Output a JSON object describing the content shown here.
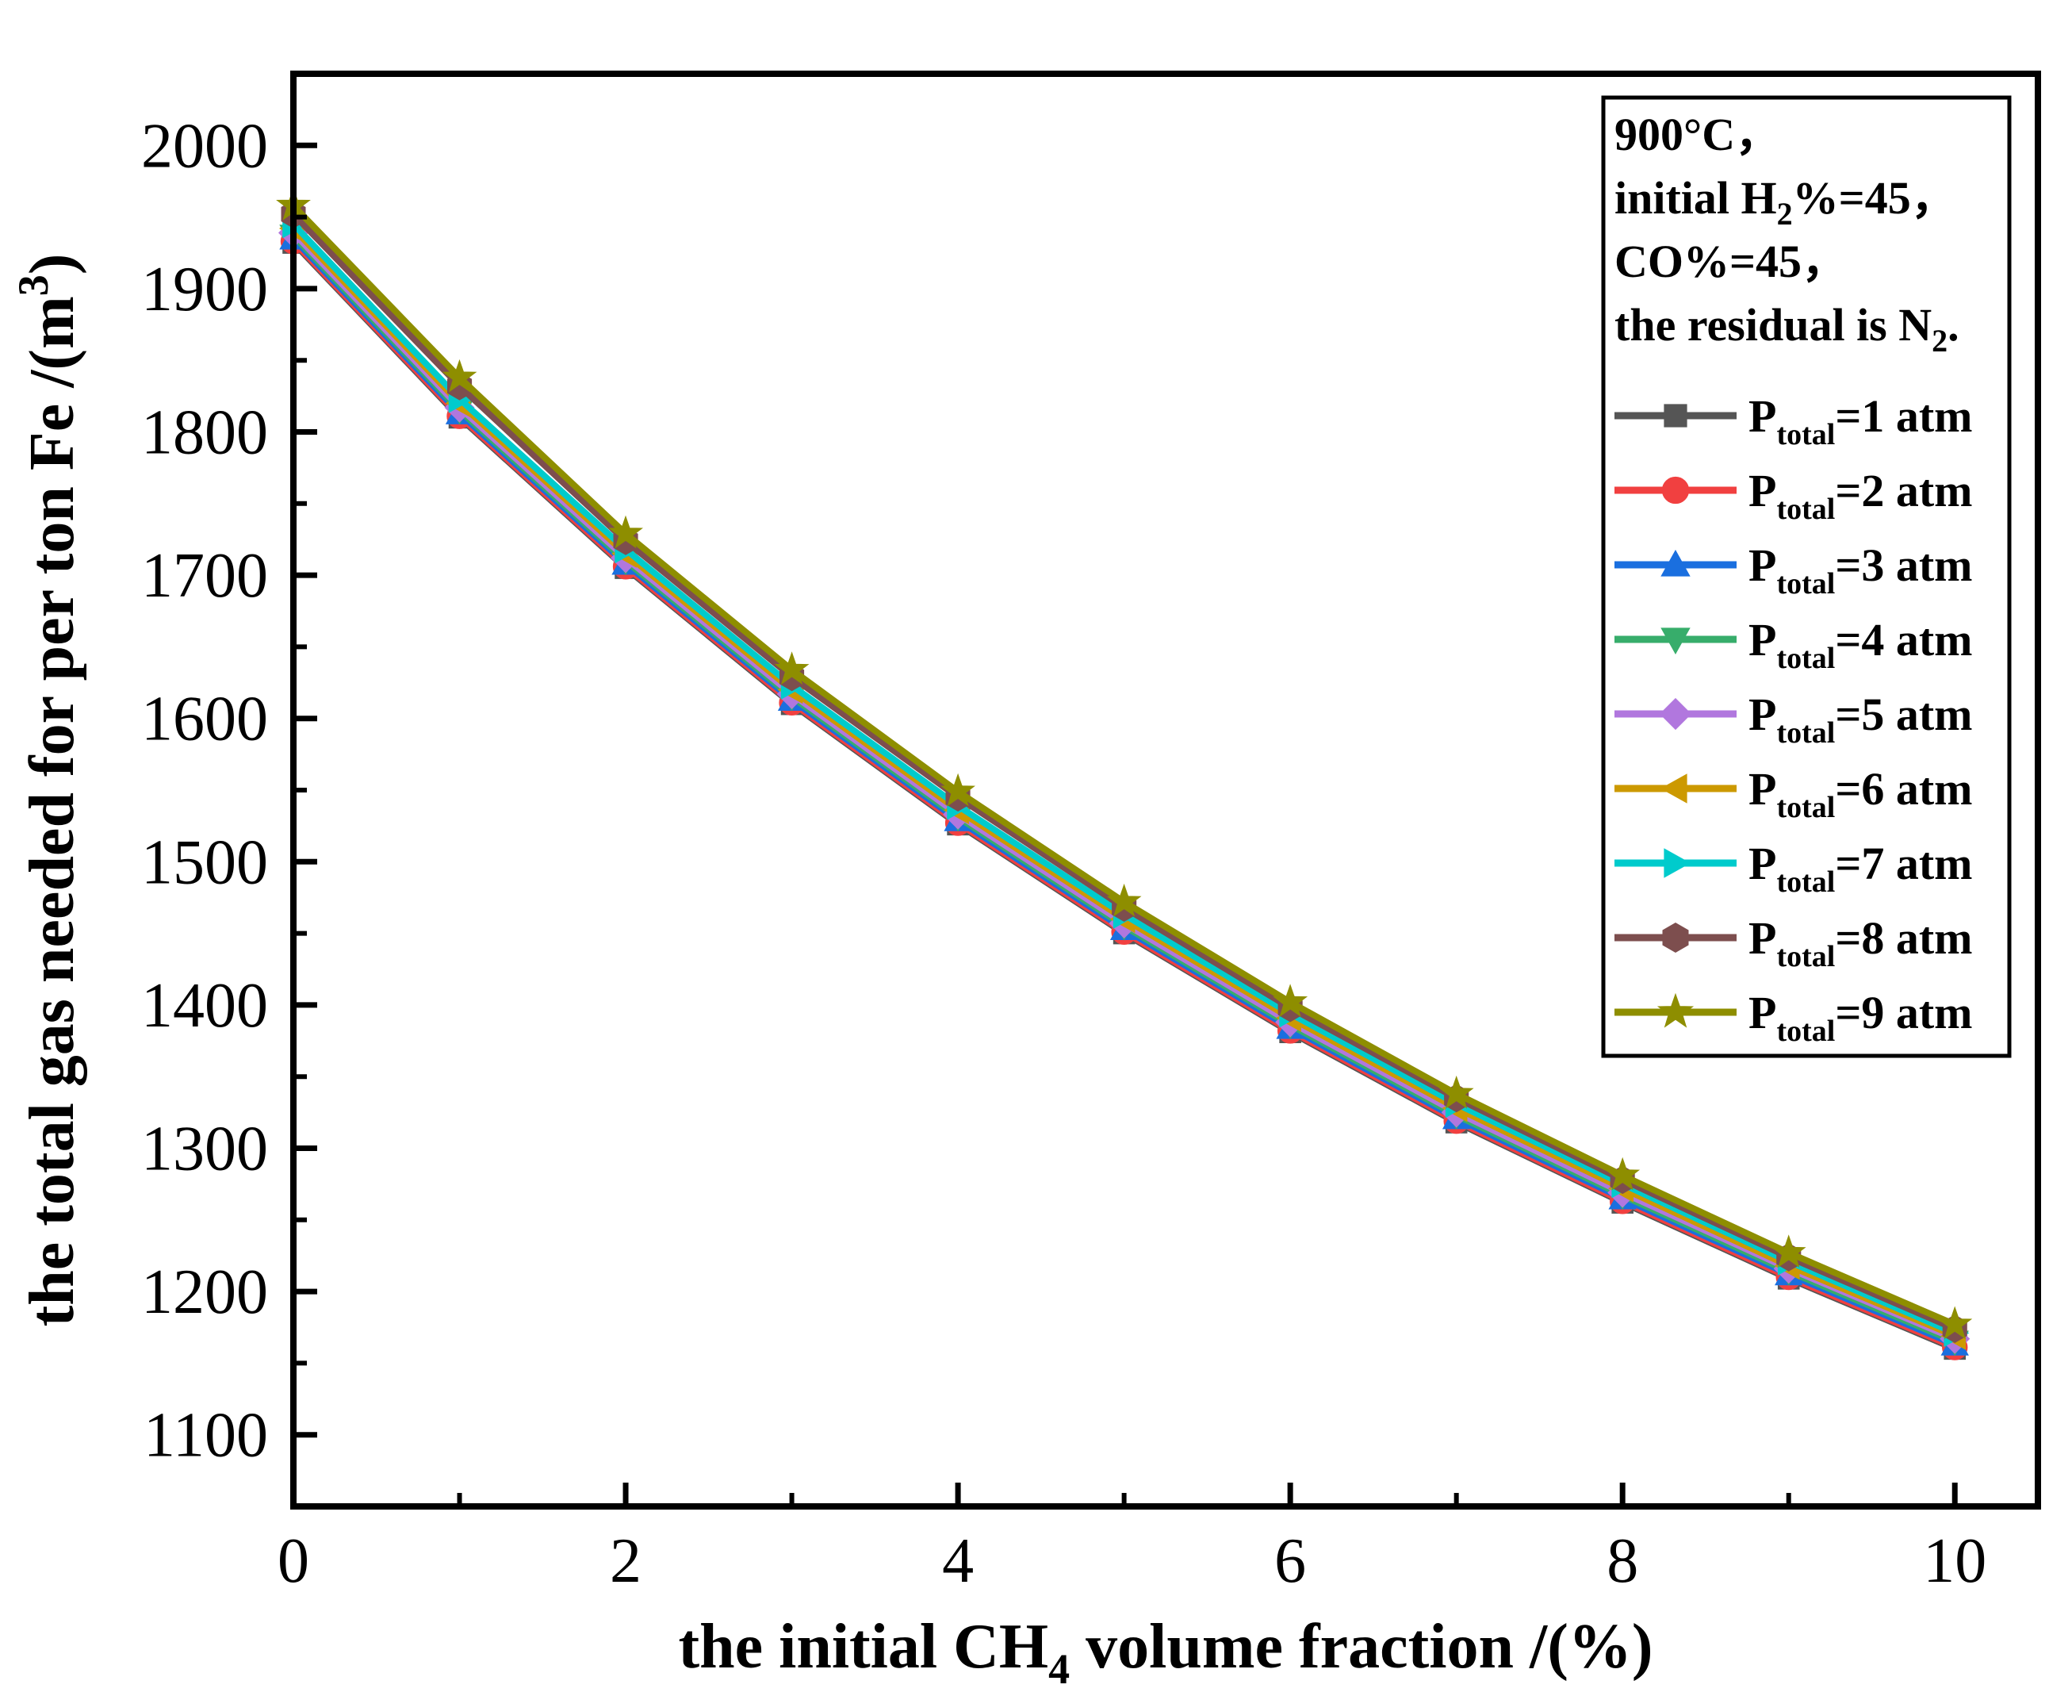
{
  "chart_data": {
    "type": "line",
    "xlabel": "the initial CH",
    "xlabel_sub": "4",
    "xlabel_tail": " volume fraction /(%)",
    "ylabel": "the total gas needed for per ton Fe /(m",
    "ylabel_sup": "3",
    "ylabel_tail": ")",
    "xlim": [
      0,
      10.5
    ],
    "ylim": [
      1050,
      2050
    ],
    "xticks": [
      0,
      2,
      4,
      6,
      8,
      10
    ],
    "xticks_minor": [
      1,
      3,
      5,
      7,
      9
    ],
    "yticks": [
      1100,
      1200,
      1300,
      1400,
      1500,
      1600,
      1700,
      1800,
      1900,
      2000
    ],
    "x": [
      0,
      1,
      2,
      3,
      4,
      5,
      6,
      7,
      8,
      9,
      10
    ],
    "annotation": [
      {
        "parts": [
          {
            "t": "900°C，"
          }
        ]
      },
      {
        "parts": [
          {
            "t": "initial H"
          },
          {
            "t": "2",
            "sub": true
          },
          {
            "t": "%=45，"
          }
        ]
      },
      {
        "parts": [
          {
            "t": "CO%=45，"
          }
        ]
      },
      {
        "parts": [
          {
            "t": "the residual is N"
          },
          {
            "t": "2",
            "sub": true
          },
          {
            "t": "."
          }
        ]
      }
    ],
    "series": [
      {
        "name": "P",
        "sub": "total",
        "suffix": "=1 atm",
        "color": "#555555",
        "marker": "square",
        "values": [
          1932,
          1810,
          1705,
          1610,
          1526,
          1450,
          1381,
          1318,
          1262,
          1209,
          1160
        ]
      },
      {
        "name": "P",
        "sub": "total",
        "suffix": "=2 atm",
        "color": "#f14040",
        "marker": "circle",
        "values": [
          1933,
          1811,
          1706,
          1611,
          1527,
          1451,
          1382,
          1319,
          1263,
          1210,
          1161
        ]
      },
      {
        "name": "P",
        "sub": "total",
        "suffix": "=3 atm",
        "color": "#1a6fdf",
        "marker": "triangle-up",
        "values": [
          1935,
          1813,
          1708,
          1613,
          1529,
          1453,
          1384,
          1321,
          1265,
          1212,
          1163
        ]
      },
      {
        "name": "P",
        "sub": "total",
        "suffix": "=4 atm",
        "color": "#37ad6b",
        "marker": "triangle-down",
        "values": [
          1937,
          1815,
          1710,
          1615,
          1531,
          1455,
          1386,
          1323,
          1267,
          1214,
          1165
        ]
      },
      {
        "name": "P",
        "sub": "total",
        "suffix": "=5 atm",
        "color": "#b177de",
        "marker": "diamond",
        "values": [
          1939,
          1817,
          1712,
          1617,
          1533,
          1457,
          1388,
          1325,
          1269,
          1216,
          1167
        ]
      },
      {
        "name": "P",
        "sub": "total",
        "suffix": "=6 atm",
        "color": "#cc9900",
        "marker": "triangle-left",
        "values": [
          1942,
          1820,
          1715,
          1620,
          1536,
          1460,
          1391,
          1328,
          1272,
          1218,
          1169
        ]
      },
      {
        "name": "P",
        "sub": "total",
        "suffix": "=7 atm",
        "color": "#00cbcc",
        "marker": "triangle-right",
        "values": [
          1945,
          1823,
          1718,
          1623,
          1539,
          1463,
          1394,
          1331,
          1275,
          1221,
          1171
        ]
      },
      {
        "name": "P",
        "sub": "total",
        "suffix": "=8 atm",
        "color": "#7d4e4e",
        "marker": "hexagon",
        "values": [
          1952,
          1832,
          1724,
          1629,
          1545,
          1468,
          1398,
          1335,
          1278,
          1224,
          1174
        ]
      },
      {
        "name": "P",
        "sub": "total",
        "suffix": "=9 atm",
        "color": "#8e8e00",
        "marker": "star",
        "values": [
          1958,
          1838,
          1729,
          1634,
          1549,
          1472,
          1402,
          1338,
          1281,
          1227,
          1177
        ]
      }
    ]
  }
}
